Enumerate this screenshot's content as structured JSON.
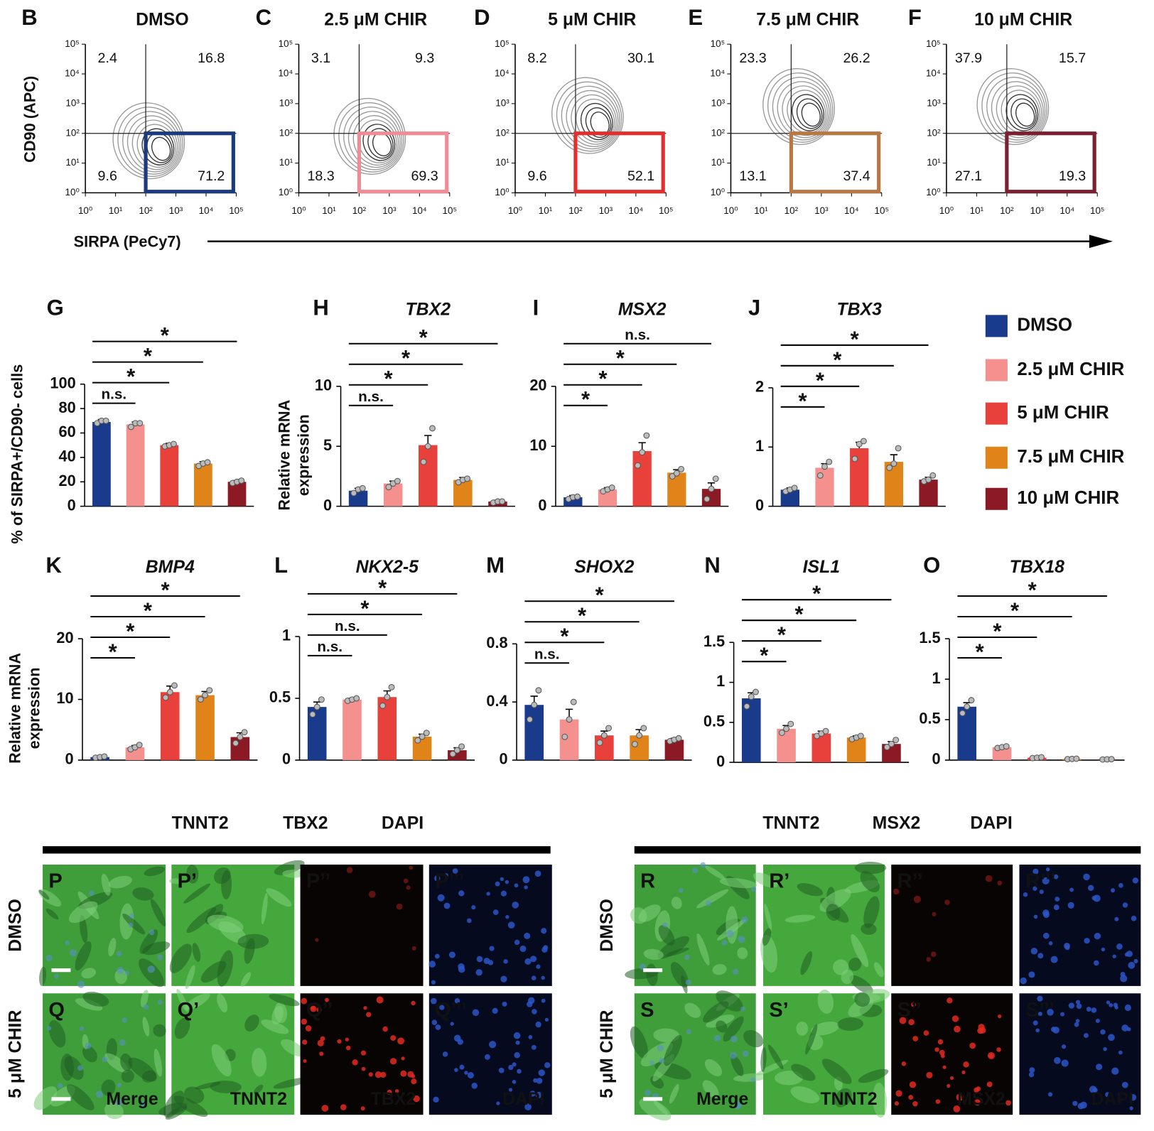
{
  "chart_data": [
    {
      "type": "flow",
      "letter": "B",
      "title": "DMSO",
      "y_label": "CD90 (APC)",
      "x_label": "SIRPA (PeCy7)",
      "quadrants": [
        2.4,
        16.8,
        9.6,
        71.2
      ],
      "gate": {
        "x": [
          100,
          80000
        ],
        "y": [
          1.1,
          100
        ],
        "color": "#1b3b7d"
      },
      "log": true,
      "xlim": [
        1,
        100000
      ],
      "ylim": [
        1,
        100000
      ],
      "xticks": [
        {
          "value": 1,
          "label": "10⁰"
        },
        {
          "value": 10,
          "label": "10¹"
        },
        {
          "value": 100,
          "label": "10²"
        },
        {
          "value": 1000,
          "label": "10³"
        },
        {
          "value": 10000,
          "label": "10⁴"
        },
        {
          "value": 100000,
          "label": "10⁵"
        }
      ],
      "yticks": [
        {
          "value": 1,
          "label": "10⁰"
        },
        {
          "value": 10,
          "label": "10¹"
        },
        {
          "value": 100,
          "label": "10²"
        },
        {
          "value": 1000,
          "label": "10³"
        },
        {
          "value": 10000,
          "label": "10⁴"
        },
        {
          "value": 100000,
          "label": "10⁵"
        }
      ]
    },
    {
      "type": "flow",
      "letter": "C",
      "title": "2.5 μM CHIR",
      "quadrants": [
        3.1,
        9.3,
        18.3,
        69.3
      ],
      "gate": {
        "x": [
          100,
          80000
        ],
        "y": [
          1.1,
          100
        ],
        "color": "#f08c96"
      },
      "log": true,
      "xlim": [
        1,
        100000
      ],
      "ylim": [
        1,
        100000
      ],
      "xticks": [
        {
          "value": 1,
          "label": "10⁰"
        },
        {
          "value": 10,
          "label": "10¹"
        },
        {
          "value": 100,
          "label": "10²"
        },
        {
          "value": 1000,
          "label": "10³"
        },
        {
          "value": 10000,
          "label": "10⁴"
        },
        {
          "value": 100000,
          "label": "10⁵"
        }
      ],
      "yticks": [
        {
          "value": 1,
          "label": "10⁰"
        },
        {
          "value": 10,
          "label": "10¹"
        },
        {
          "value": 100,
          "label": "10²"
        },
        {
          "value": 1000,
          "label": "10³"
        },
        {
          "value": 10000,
          "label": "10⁴"
        },
        {
          "value": 100000,
          "label": "10⁵"
        }
      ]
    },
    {
      "type": "flow",
      "letter": "D",
      "title": "5 μM CHIR",
      "quadrants": [
        8.2,
        30.1,
        9.6,
        52.1
      ],
      "gate": {
        "x": [
          100,
          80000
        ],
        "y": [
          1.1,
          100
        ],
        "color": "#e0302e"
      },
      "log": true,
      "xlim": [
        1,
        100000
      ],
      "ylim": [
        1,
        100000
      ],
      "xticks": [
        {
          "value": 1,
          "label": "10⁰"
        },
        {
          "value": 10,
          "label": "10¹"
        },
        {
          "value": 100,
          "label": "10²"
        },
        {
          "value": 1000,
          "label": "10³"
        },
        {
          "value": 10000,
          "label": "10⁴"
        },
        {
          "value": 100000,
          "label": "10⁵"
        }
      ],
      "yticks": [
        {
          "value": 1,
          "label": "10⁰"
        },
        {
          "value": 10,
          "label": "10¹"
        },
        {
          "value": 100,
          "label": "10²"
        },
        {
          "value": 1000,
          "label": "10³"
        },
        {
          "value": 10000,
          "label": "10⁴"
        },
        {
          "value": 100000,
          "label": "10⁵"
        }
      ]
    },
    {
      "type": "flow",
      "letter": "E",
      "title": "7.5 μM CHIR",
      "quadrants": [
        23.3,
        26.2,
        13.1,
        37.4
      ],
      "gate": {
        "x": [
          100,
          80000
        ],
        "y": [
          1.1,
          100
        ],
        "color": "#b87844"
      },
      "log": true,
      "xlim": [
        1,
        100000
      ],
      "ylim": [
        1,
        100000
      ],
      "xticks": [
        {
          "value": 1,
          "label": "10⁰"
        },
        {
          "value": 10,
          "label": "10¹"
        },
        {
          "value": 100,
          "label": "10²"
        },
        {
          "value": 1000,
          "label": "10³"
        },
        {
          "value": 10000,
          "label": "10⁴"
        },
        {
          "value": 100000,
          "label": "10⁵"
        }
      ],
      "yticks": [
        {
          "value": 1,
          "label": "10⁰"
        },
        {
          "value": 10,
          "label": "10¹"
        },
        {
          "value": 100,
          "label": "10²"
        },
        {
          "value": 1000,
          "label": "10³"
        },
        {
          "value": 10000,
          "label": "10⁴"
        },
        {
          "value": 100000,
          "label": "10⁵"
        }
      ]
    },
    {
      "type": "flow",
      "letter": "F",
      "title": "10 μM CHIR",
      "quadrants": [
        37.9,
        15.7,
        27.1,
        19.3
      ],
      "gate": {
        "x": [
          100,
          80000
        ],
        "y": [
          1.1,
          100
        ],
        "color": "#7a2030"
      },
      "log": true,
      "xlim": [
        1,
        100000
      ],
      "ylim": [
        1,
        100000
      ],
      "xticks": [
        {
          "value": 1,
          "label": "10⁰"
        },
        {
          "value": 10,
          "label": "10¹"
        },
        {
          "value": 100,
          "label": "10²"
        },
        {
          "value": 1000,
          "label": "10³"
        },
        {
          "value": 10000,
          "label": "10⁴"
        },
        {
          "value": 100000,
          "label": "10⁵"
        }
      ],
      "yticks": [
        {
          "value": 1,
          "label": "10⁰"
        },
        {
          "value": 10,
          "label": "10¹"
        },
        {
          "value": 100,
          "label": "10²"
        },
        {
          "value": 1000,
          "label": "10³"
        },
        {
          "value": 10000,
          "label": "10⁴"
        },
        {
          "value": 100000,
          "label": "10⁵"
        }
      ]
    },
    {
      "type": "bar",
      "letter": "G",
      "y_label": [
        "% of SIRPA+/CD90- cells"
      ],
      "ylim": [
        0,
        100
      ],
      "yticks": [
        0,
        20,
        40,
        60,
        80,
        100
      ],
      "values": [
        69,
        67,
        50,
        35,
        20
      ],
      "errors": [
        2,
        2,
        1.5,
        1.5,
        1
      ],
      "points": [
        [
          68,
          70,
          70
        ],
        [
          65,
          68,
          68
        ],
        [
          49,
          50,
          51
        ],
        [
          33,
          35,
          36
        ],
        [
          19,
          20,
          21
        ]
      ],
      "significance": [
        "n.s.",
        "*",
        "*",
        "*"
      ]
    },
    {
      "type": "bar",
      "letter": "H",
      "title": "TBX2",
      "y_label": [
        "Relative mRNA",
        "expression"
      ],
      "ylim": [
        0,
        10
      ],
      "yticks": [
        0,
        5,
        10
      ],
      "values": [
        1.3,
        1.9,
        5.1,
        2.2,
        0.4
      ],
      "errors": [
        0.2,
        0.2,
        0.8,
        0.2,
        0.1
      ],
      "points": [
        [
          1.1,
          1.4,
          1.5
        ],
        [
          1.6,
          1.9,
          2.1
        ],
        [
          3.7,
          5.0,
          6.5
        ],
        [
          2.0,
          2.2,
          2.3
        ],
        [
          0.3,
          0.4,
          0.4
        ]
      ],
      "significance": [
        "n.s.",
        "*",
        "*",
        "*"
      ]
    },
    {
      "type": "bar",
      "letter": "I",
      "title": "MSX2",
      "ylim": [
        0,
        20
      ],
      "yticks": [
        0,
        10,
        20
      ],
      "values": [
        1.5,
        2.8,
        9.2,
        5.6,
        2.9
      ],
      "errors": [
        0.3,
        0.3,
        1.4,
        0.5,
        1.0
      ],
      "points": [
        [
          1.2,
          1.5,
          1.6
        ],
        [
          2.5,
          2.8,
          3.1
        ],
        [
          6.8,
          9.0,
          11.8
        ],
        [
          5.0,
          5.5,
          6.2
        ],
        [
          1.2,
          2.9,
          4.6
        ]
      ],
      "significance": [
        "*",
        "*",
        "*",
        "n.s."
      ]
    },
    {
      "type": "bar",
      "letter": "J",
      "title": "TBX3",
      "ylim": [
        0,
        2
      ],
      "yticks": [
        0,
        1,
        2
      ],
      "values": [
        0.28,
        0.65,
        0.98,
        0.75,
        0.45
      ],
      "errors": [
        0.03,
        0.07,
        0.1,
        0.12,
        0.04
      ],
      "points": [
        [
          0.25,
          0.28,
          0.31
        ],
        [
          0.52,
          0.67,
          0.75
        ],
        [
          0.8,
          1.05,
          1.1
        ],
        [
          0.65,
          0.72,
          0.98
        ],
        [
          0.42,
          0.45,
          0.52
        ]
      ],
      "significance": [
        "*",
        "*",
        "*",
        "*"
      ]
    },
    {
      "type": "bar",
      "letter": "K",
      "title": "BMP4",
      "y_label": [
        "Relative mRNA",
        "expression"
      ],
      "ylim": [
        0,
        20
      ],
      "yticks": [
        0,
        10,
        20
      ],
      "values": [
        0.5,
        2.1,
        11.2,
        10.7,
        3.8
      ],
      "errors": [
        0.1,
        0.3,
        1.0,
        0.6,
        0.7
      ],
      "points": [
        [
          0.4,
          0.5,
          0.6
        ],
        [
          1.8,
          2.1,
          2.5
        ],
        [
          10.3,
          11.2,
          12.3
        ],
        [
          10.0,
          10.7,
          11.5
        ],
        [
          2.8,
          3.8,
          4.6
        ]
      ],
      "significance": [
        "*",
        "*",
        "*",
        "*"
      ]
    },
    {
      "type": "bar",
      "letter": "L",
      "title": "NKX2-5",
      "ylim": [
        0,
        1
      ],
      "yticks": [
        0,
        0.5,
        1
      ],
      "values": [
        0.43,
        0.49,
        0.51,
        0.19,
        0.08
      ],
      "errors": [
        0.04,
        0.01,
        0.05,
        0.02,
        0.02
      ],
      "points": [
        [
          0.37,
          0.43,
          0.49
        ],
        [
          0.48,
          0.49,
          0.5
        ],
        [
          0.44,
          0.51,
          0.59
        ],
        [
          0.16,
          0.19,
          0.22
        ],
        [
          0.05,
          0.08,
          0.11
        ]
      ],
      "significance": [
        "n.s.",
        "n.s.",
        "*",
        "*"
      ]
    },
    {
      "type": "bar",
      "letter": "M",
      "title": "SHOX2",
      "ylim": [
        0,
        0.8
      ],
      "yticks": [
        0,
        0.4,
        0.8
      ],
      "values": [
        0.38,
        0.28,
        0.17,
        0.17,
        0.14
      ],
      "errors": [
        0.06,
        0.07,
        0.03,
        0.04,
        0.01
      ],
      "points": [
        [
          0.28,
          0.38,
          0.48
        ],
        [
          0.16,
          0.28,
          0.4
        ],
        [
          0.12,
          0.17,
          0.22
        ],
        [
          0.11,
          0.17,
          0.22
        ],
        [
          0.13,
          0.14,
          0.15
        ]
      ],
      "significance": [
        "n.s.",
        "*",
        "*",
        "*"
      ]
    },
    {
      "type": "bar",
      "letter": "N",
      "title": "ISL1",
      "ylim": [
        0,
        1.5
      ],
      "yticks": [
        0,
        0.5,
        1,
        1.5
      ],
      "values": [
        0.8,
        0.42,
        0.36,
        0.31,
        0.23
      ],
      "errors": [
        0.07,
        0.04,
        0.03,
        0.02,
        0.03
      ],
      "points": [
        [
          0.7,
          0.82,
          0.88
        ],
        [
          0.37,
          0.42,
          0.48
        ],
        [
          0.33,
          0.36,
          0.39
        ],
        [
          0.29,
          0.31,
          0.33
        ],
        [
          0.19,
          0.23,
          0.28
        ]
      ],
      "significance": [
        "*",
        "*",
        "*",
        "*"
      ]
    },
    {
      "type": "bar",
      "letter": "O",
      "title": "TBX18",
      "ylim": [
        0,
        1.5
      ],
      "yticks": [
        0,
        0.5,
        1,
        1.5
      ],
      "values": [
        0.66,
        0.16,
        0.03,
        0.015,
        0.01
      ],
      "errors": [
        0.05,
        0.01,
        0.005,
        0.003,
        0.002
      ],
      "points": [
        [
          0.58,
          0.66,
          0.74
        ],
        [
          0.15,
          0.16,
          0.17
        ],
        [
          0.025,
          0.03,
          0.035
        ],
        [
          0.012,
          0.015,
          0.018
        ],
        [
          0.008,
          0.01,
          0.012
        ]
      ],
      "significance": [
        "*",
        "*",
        "*",
        "*"
      ]
    }
  ],
  "legend": {
    "names": [
      "DMSO",
      "2.5 μM CHIR",
      "5 μM CHIR",
      "7.5 μM CHIR",
      "10 μM CHIR"
    ],
    "colors": [
      "#1a3a8c",
      "#f4918f",
      "#e8403a",
      "#e0841a",
      "#8b1a24"
    ]
  },
  "images": {
    "groups": [
      {
        "channels": [
          "TNNT2",
          "TBX2",
          "DAPI"
        ],
        "rows": [
          {
            "label": "DMSO",
            "panels": [
              "P",
              "P’",
              "P’’",
              "P’’’"
            ]
          },
          {
            "label": "5 μM CHIR",
            "panels": [
              "Q",
              "Q’",
              "Q’’",
              "Q’’’"
            ],
            "captions": [
              "Merge",
              "TNNT2",
              "TBX2",
              "DAPI"
            ]
          }
        ]
      },
      {
        "channels": [
          "TNNT2",
          "MSX2",
          "DAPI"
        ],
        "rows": [
          {
            "label": "DMSO",
            "panels": [
              "R",
              "R’",
              "R’’",
              "R’’’"
            ]
          },
          {
            "label": "5 μM CHIR",
            "panels": [
              "S",
              "S’",
              "S’’",
              "S’’’"
            ],
            "captions": [
              "Merge",
              "TNNT2",
              "MSX2",
              "DAPI"
            ]
          }
        ]
      }
    ]
  }
}
